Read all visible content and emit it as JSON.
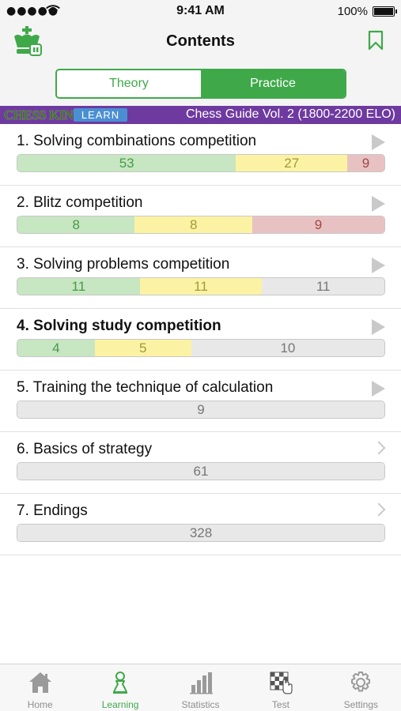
{
  "status": {
    "signal": "●●●●●",
    "wifi": "wifi",
    "time": "9:41 AM",
    "battery": "100%"
  },
  "header": {
    "title": "Contents"
  },
  "segments": {
    "theory": "Theory",
    "practice": "Practice",
    "selected": "Practice"
  },
  "banner": {
    "brand": "CHESS KING",
    "learn": "LEARN",
    "title": "Chess Guide Vol. 2 (1800-2200 ELO)"
  },
  "colors": {
    "accent": "#3fa94a",
    "banner": "#6e3aa0",
    "green": "#c7e6c2",
    "yellow": "#fbf3a3",
    "red": "#e8c2c2",
    "gray": "#e8e8e8"
  },
  "items": [
    {
      "title": "1. Solving combinations competition",
      "icon": "play-icon",
      "bold": false,
      "progress": {
        "green": 53,
        "yellow": 27,
        "red": 9,
        "remaining": null
      }
    },
    {
      "title": "2. Blitz competition",
      "icon": "play-icon",
      "bold": false,
      "progress": {
        "green": 8,
        "yellow": 8,
        "red": 9,
        "remaining": null
      }
    },
    {
      "title": "3. Solving problems competition",
      "icon": "play-icon",
      "bold": false,
      "progress": {
        "green": 11,
        "yellow": 11,
        "red": null,
        "remaining": 11
      }
    },
    {
      "title": "4. Solving study competition",
      "icon": "play-icon",
      "bold": true,
      "progress": {
        "green": 4,
        "yellow": 5,
        "red": null,
        "remaining": 10
      }
    },
    {
      "title": "5. Training the technique of calculation",
      "icon": "play-icon",
      "bold": false,
      "progress": {
        "green": null,
        "yellow": null,
        "red": null,
        "remaining": 9
      }
    },
    {
      "title": "6. Basics of strategy",
      "icon": "chevron-right-icon",
      "bold": false,
      "progress": {
        "green": null,
        "yellow": null,
        "red": null,
        "remaining": 61
      }
    },
    {
      "title": "7. Endings",
      "icon": "chevron-right-icon",
      "bold": false,
      "progress": {
        "green": null,
        "yellow": null,
        "red": null,
        "remaining": 328
      }
    }
  ],
  "tabs": [
    {
      "label": "Home",
      "icon": "home-icon",
      "active": false
    },
    {
      "label": "Learning",
      "icon": "pawn-icon",
      "active": true
    },
    {
      "label": "Statistics",
      "icon": "bar-chart-icon",
      "active": false
    },
    {
      "label": "Test",
      "icon": "chessboard-hand-icon",
      "active": false
    },
    {
      "label": "Settings",
      "icon": "gear-icon",
      "active": false
    }
  ]
}
